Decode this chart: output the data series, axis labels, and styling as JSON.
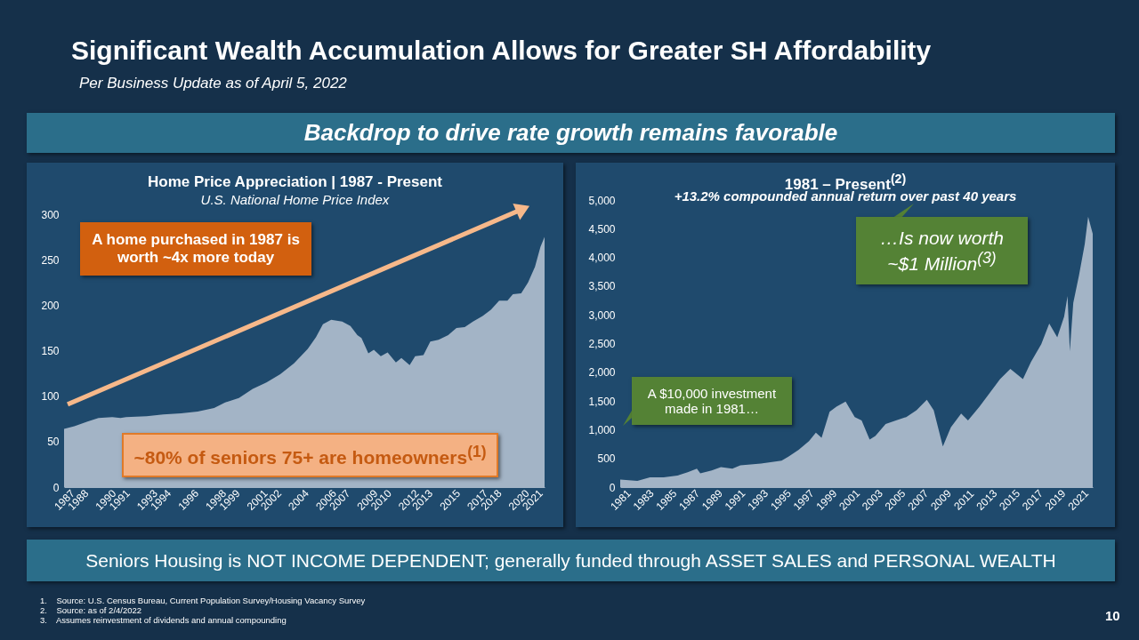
{
  "chart_data": [
    {
      "type": "other",
      "title": "Significant Wealth Accumulation Allows for Greater SH Affordability",
      "subtitle": "Per Business Update as of April 5, 2022",
      "annotations": [
        "Backdrop to drive rate growth remains favorable",
        "Seniors Housing is NOT INCOME DEPENDENT; generally funded through ASSET SALES and PERSONAL WEALTH",
        "1.    Source: U.S. Census Bureau, Current Population Survey/Housing Vacancy Survey",
        "2.    Source: as of 2/4/2022",
        "3.    Assumes reinvestment of dividends and annual compounding",
        "10"
      ]
    },
    {
      "type": "area",
      "title": "Home Price Appreciation | 1987 - Present",
      "subtitle": "U.S. National Home Price Index",
      "annotations": [
        "A home purchased in 1987 is worth ~4x more today",
        "~80% of seniors 75+ are homeowners$^{(1)}$"
      ],
      "x": [
        1987.0,
        1987.75,
        1988.7,
        1989.5,
        1990.5,
        1991.1,
        1991.5,
        1993.0,
        1994.2,
        1995.5,
        1996.7,
        1997.9,
        1998.7,
        1999.7,
        2000.7,
        2001.7,
        2002.7,
        2003.7,
        2004.7,
        2005.3,
        2005.8,
        2006.4,
        2007.2,
        2007.8,
        2008.3,
        2008.6,
        2009.1,
        2009.5,
        2010.0,
        2010.5,
        2011.1,
        2011.5,
        2012.1,
        2012.5,
        2013.1,
        2013.6,
        2014.2,
        2014.9,
        2015.5,
        2016.1,
        2016.7,
        2017.4,
        2018.0,
        2018.6,
        2019.2,
        2019.6,
        2020.2,
        2020.7,
        2021.2,
        2021.6,
        2021.9
      ],
      "series": [
        {
          "color": "#a3b4c6",
          "values": [
            64,
            67,
            72,
            76,
            77,
            76,
            77,
            78,
            80,
            81,
            83,
            87,
            93,
            98,
            108,
            115,
            124,
            136,
            152,
            165,
            179,
            184,
            182,
            177,
            167,
            164,
            147,
            151,
            144,
            148,
            137,
            142,
            134,
            144,
            145,
            160,
            162,
            167,
            175,
            176,
            182,
            188,
            195,
            205,
            205,
            212,
            213,
            225,
            242,
            264,
            275
          ]
        }
      ],
      "xlim": [
        1987,
        2021.9
      ],
      "ylim": [
        0,
        300
      ],
      "yticks": [
        0,
        50,
        100,
        150,
        200,
        250,
        300
      ],
      "xticks": [
        1987,
        1988,
        1990,
        1991,
        1993,
        1994,
        1996,
        1998,
        1999,
        2001,
        2002,
        2004,
        2006,
        2007,
        2009,
        2010,
        2012,
        2013,
        2015,
        2017,
        2018,
        2020,
        2021
      ]
    },
    {
      "type": "area",
      "title": "1981 – Present$^{(2)}$",
      "subtitle": "+13.2% compounded annual return over past 40 years",
      "annotations": [
        "A $10,000 investment made in 1981…",
        "…Is now worth ~$1 Million$^{(3)}$"
      ],
      "x": [
        1981.0,
        1982.5,
        1983.6,
        1984.8,
        1986.0,
        1986.9,
        1987.7,
        1988.0,
        1989.0,
        1989.8,
        1990.8,
        1991.5,
        1993.3,
        1995.1,
        1995.7,
        1996.6,
        1997.5,
        1998.1,
        1998.6,
        1999.3,
        1999.9,
        2000.7,
        2001.5,
        2002.1,
        2002.8,
        2003.3,
        2004.2,
        2005.1,
        2006.0,
        2006.9,
        2007.8,
        2008.4,
        2009.2,
        2009.9,
        2010.8,
        2011.4,
        2012.4,
        2013.3,
        2014.2,
        2015.1,
        2016.2,
        2016.9,
        2017.8,
        2018.5,
        2019.2,
        2019.8,
        2020.1,
        2020.3,
        2020.6,
        2021.1,
        2021.6,
        2021.9,
        2022.3
      ],
      "series": [
        {
          "color": "#a3b4c6",
          "values": [
            130,
            110,
            170,
            170,
            200,
            260,
            320,
            240,
            290,
            350,
            320,
            380,
            410,
            460,
            530,
            650,
            800,
            950,
            860,
            1310,
            1400,
            1490,
            1220,
            1160,
            830,
            890,
            1100,
            1160,
            1220,
            1340,
            1520,
            1340,
            710,
            1040,
            1280,
            1160,
            1400,
            1640,
            1880,
            2060,
            1880,
            2180,
            2490,
            2850,
            2610,
            2970,
            3330,
            2370,
            3210,
            3690,
            4230,
            4710,
            4410
          ]
        }
      ],
      "xlim": [
        1981,
        2022.3
      ],
      "ylim": [
        0,
        5000
      ],
      "yticks": [
        0,
        500,
        {
          "value": 1000,
          "label": "1,000"
        },
        {
          "value": 1500,
          "label": "1,500"
        },
        {
          "value": 2000,
          "label": "2,000"
        },
        {
          "value": 2500,
          "label": "2,500"
        },
        {
          "value": 3000,
          "label": "3,000"
        },
        {
          "value": 3500,
          "label": "3,500"
        },
        {
          "value": 4000,
          "label": "4,000"
        },
        {
          "value": 4500,
          "label": "4,500"
        },
        {
          "value": 5000,
          "label": "5,000"
        }
      ],
      "xticks": [
        1981,
        1983,
        1985,
        1987,
        1989,
        1991,
        1993,
        1995,
        1997,
        1999,
        2001,
        2003,
        2005,
        2007,
        2009,
        2011,
        2013,
        2015,
        2017,
        2019,
        2021
      ]
    }
  ]
}
